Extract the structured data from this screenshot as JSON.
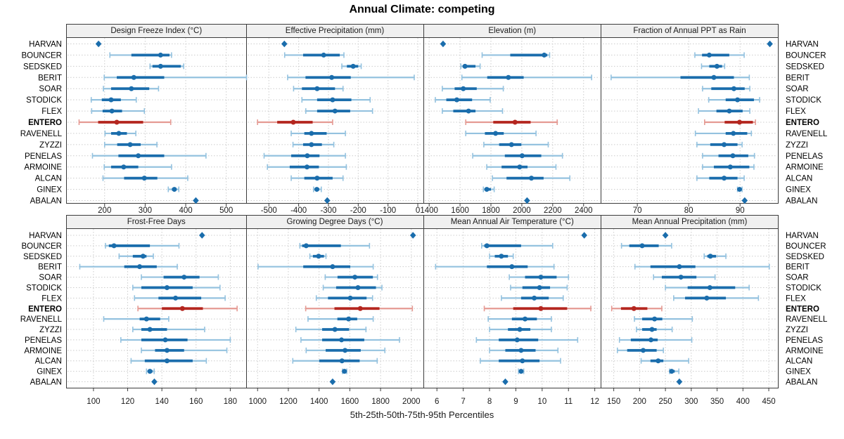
{
  "title": "Annual Climate: competing",
  "footer": "5th-25th-50th-75th-95th Percentiles",
  "highlight_site": "ENTERO",
  "colors": {
    "blue_dark": "#1a6dac",
    "blue_light": "#94c2df",
    "red_dark": "#b4261f",
    "red_light": "#e59a93",
    "grid": "#cccccc",
    "border": "#3c3c3c",
    "header_bg": "#f0f0f0",
    "text": "#1a1a1a"
  },
  "sites": [
    "HARVAN",
    "BOUNCER",
    "SEDSKED",
    "BERIT",
    "SOAR",
    "STODICK",
    "FLEX",
    "ENTERO",
    "RAVENELL",
    "ZYZZI",
    "PENELAS",
    "ARMOINE",
    "ALCAN",
    "GINEX",
    "ABALAN"
  ],
  "chart_data": [
    {
      "type": "percentile-dot",
      "title": "Design Freeze Index (°C)",
      "ticks": [
        200,
        300,
        400,
        500
      ],
      "xlim": [
        105,
        550
      ],
      "values": [
        [
          185
        ],
        [
          213,
          266,
          338,
          360,
          365
        ],
        [
          312,
          318,
          338,
          388,
          395
        ],
        [
          199,
          230,
          272,
          347,
          550
        ],
        [
          197,
          216,
          266,
          310,
          333
        ],
        [
          167,
          193,
          216,
          240,
          278
        ],
        [
          168,
          195,
          218,
          243,
          298
        ],
        [
          137,
          184,
          230,
          295,
          363
        ],
        [
          201,
          216,
          235,
          255,
          277
        ],
        [
          200,
          231,
          263,
          289,
          329
        ],
        [
          170,
          234,
          283,
          347,
          450
        ],
        [
          199,
          216,
          247,
          283,
          365
        ],
        [
          196,
          248,
          298,
          330,
          405
        ],
        [
          357,
          366,
          372,
          377,
          383
        ],
        [
          425
        ]
      ]
    },
    {
      "type": "percentile-dot",
      "title": "Effective Precipitation (mm)",
      "ticks": [
        -500,
        -400,
        -300,
        -200,
        -100,
        0
      ],
      "xlim": [
        -575,
        20
      ],
      "values": [
        [
          -448
        ],
        [
          -447,
          -385,
          -316,
          -262,
          -248
        ],
        [
          -255,
          -238,
          -217,
          -200,
          -190
        ],
        [
          -437,
          -377,
          -289,
          -225,
          -12
        ],
        [
          -417,
          -389,
          -338,
          -278,
          -251
        ],
        [
          -389,
          -338,
          -286,
          -223,
          -160
        ],
        [
          -376,
          -338,
          -278,
          -227,
          -152
        ],
        [
          -538,
          -472,
          -418,
          -353,
          -286
        ],
        [
          -425,
          -381,
          -357,
          -306,
          -243
        ],
        [
          -419,
          -385,
          -357,
          -322,
          -282
        ],
        [
          -516,
          -425,
          -371,
          -330,
          -243
        ],
        [
          -505,
          -430,
          -372,
          -332,
          -240
        ],
        [
          -425,
          -381,
          -338,
          -286,
          -251
        ],
        [
          -350,
          -345,
          -339,
          -331,
          -324
        ],
        [
          -304
        ]
      ]
    },
    {
      "type": "percentile-dot",
      "title": "Elevation (m)",
      "ticks": [
        1400,
        1600,
        1800,
        2000,
        2200,
        2400
      ],
      "xlim": [
        1365,
        2515
      ],
      "values": [
        [
          1490
        ],
        [
          1743,
          1925,
          2145,
          2165,
          2180
        ],
        [
          1605,
          1617,
          1632,
          1700,
          1730
        ],
        [
          1612,
          1776,
          1913,
          2012,
          2452
        ],
        [
          1485,
          1565,
          1621,
          1708,
          1880
        ],
        [
          1440,
          1511,
          1579,
          1678,
          1795
        ],
        [
          1485,
          1556,
          1655,
          1700,
          1875
        ],
        [
          1637,
          1815,
          1956,
          2057,
          2229
        ],
        [
          1637,
          1761,
          1830,
          1883,
          2092
        ],
        [
          1754,
          1853,
          1933,
          1997,
          2171
        ],
        [
          1682,
          1890,
          2002,
          2126,
          2263
        ],
        [
          1773,
          1869,
          1986,
          2037,
          2221
        ],
        [
          1810,
          1901,
          2062,
          2141,
          2311
        ],
        [
          1751,
          1762,
          1773,
          1800,
          1821
        ],
        [
          2034
        ]
      ]
    },
    {
      "type": "percentile-dot",
      "title": "Fraction of Annual PPT as Rain",
      "ticks": [
        70,
        80,
        90
      ],
      "xlim": [
        63,
        97.5
      ],
      "values": [
        [
          95.8
        ],
        [
          81.2,
          82.6,
          84,
          87.9,
          90.8
        ],
        [
          82.5,
          84,
          85.5,
          86.5,
          87
        ],
        [
          64.9,
          78.4,
          84.9,
          88.8,
          91.8
        ],
        [
          82.7,
          84.4,
          88.8,
          90.9,
          91.9
        ],
        [
          83.9,
          87.2,
          89.5,
          92.7,
          93.8
        ],
        [
          81.9,
          85.4,
          87.9,
          90.5,
          91.9
        ],
        [
          83.1,
          87,
          89.9,
          92.5,
          93
        ],
        [
          81.3,
          87.2,
          88.7,
          91.4,
          92.2
        ],
        [
          81.6,
          84.2,
          86.9,
          89.5,
          90.4
        ],
        [
          82.7,
          85.8,
          88.6,
          91.6,
          92.8
        ],
        [
          82.7,
          84.9,
          88.1,
          91.8,
          92.7
        ],
        [
          81.6,
          84,
          86.9,
          89.5,
          90.8
        ],
        [
          89.5,
          89.7,
          89.9,
          90.1,
          90.4
        ],
        [
          90.9
        ]
      ]
    },
    {
      "type": "percentile-dot",
      "title": "Frost-Free Days",
      "ticks": [
        100,
        120,
        140,
        160,
        180
      ],
      "xlim": [
        84,
        189.5
      ],
      "values": [
        [
          163.5
        ],
        [
          107,
          109,
          112,
          133,
          150
        ],
        [
          115,
          123,
          129,
          131,
          135
        ],
        [
          92,
          118,
          127,
          137,
          149
        ],
        [
          128,
          141,
          153,
          162,
          173
        ],
        [
          123,
          128,
          143,
          158,
          174
        ],
        [
          124,
          138,
          148,
          163,
          177
        ],
        [
          126,
          140,
          152,
          164,
          184
        ],
        [
          106,
          127,
          131,
          139,
          144
        ],
        [
          123,
          128,
          133,
          143,
          165
        ],
        [
          116,
          128,
          142,
          155,
          180
        ],
        [
          128,
          136,
          143,
          153,
          178
        ],
        [
          122,
          130,
          143,
          158,
          166
        ],
        [
          131,
          132,
          133,
          134.5,
          135.5
        ],
        [
          135.6
        ]
      ]
    },
    {
      "type": "percentile-dot",
      "title": "Growing Degree Days (°C)",
      "ticks": [
        1000,
        1200,
        1400,
        1600,
        1800,
        2000
      ],
      "xlim": [
        928,
        2081
      ],
      "values": [
        [
          2011
        ],
        [
          1275,
          1290,
          1316,
          1542,
          1728
        ],
        [
          1340,
          1360,
          1397,
          1432,
          1445
        ],
        [
          1003,
          1297,
          1488,
          1603,
          1752
        ],
        [
          1440,
          1520,
          1633,
          1750,
          1780
        ],
        [
          1427,
          1511,
          1653,
          1770,
          1809
        ],
        [
          1382,
          1458,
          1603,
          1709,
          1748
        ],
        [
          1313,
          1500,
          1668,
          1793,
          2007
        ],
        [
          1328,
          1519,
          1592,
          1648,
          1752
        ],
        [
          1249,
          1420,
          1503,
          1595,
          1705
        ],
        [
          1282,
          1420,
          1546,
          1694,
          1923
        ],
        [
          1316,
          1443,
          1569,
          1671,
          1828
        ],
        [
          1229,
          1401,
          1549,
          1664,
          1778
        ],
        [
          1552,
          1558,
          1565,
          1572,
          1580
        ],
        [
          1488
        ]
      ]
    },
    {
      "type": "percentile-dot",
      "title": "Mean Annual Air Temperature (°C)",
      "ticks": [
        6,
        7,
        8,
        9,
        10,
        11,
        12
      ],
      "xlim": [
        5.5,
        12.25
      ],
      "values": [
        [
          11.6
        ],
        [
          7.7,
          7.8,
          7.9,
          9.2,
          10.4
        ],
        [
          8.0,
          8.2,
          8.45,
          8.7,
          8.9
        ],
        [
          5.95,
          7.9,
          8.85,
          9.45,
          10.45
        ],
        [
          8.75,
          9.35,
          9.95,
          10.55,
          11.0
        ],
        [
          8.8,
          9.25,
          9.9,
          10.3,
          10.95
        ],
        [
          8.45,
          9.2,
          9.7,
          10.25,
          10.8
        ],
        [
          7.8,
          8.9,
          9.95,
          10.95,
          11.85
        ],
        [
          7.95,
          8.85,
          9.35,
          9.8,
          10.35
        ],
        [
          8.0,
          8.7,
          9.15,
          9.55,
          10.35
        ],
        [
          7.5,
          8.35,
          9.05,
          9.85,
          11.35
        ],
        [
          8.0,
          8.6,
          9.2,
          9.75,
          10.6
        ],
        [
          7.65,
          8.35,
          9.25,
          9.9,
          10.7
        ],
        [
          9.1,
          9.15,
          9.2,
          9.25,
          9.3
        ],
        [
          8.6
        ]
      ]
    },
    {
      "type": "percentile-dot",
      "title": "Mean Annual Precipitation (mm)",
      "ticks": [
        150,
        200,
        250,
        300,
        350,
        400,
        450
      ],
      "xlim": [
        126,
        469
      ],
      "values": [
        [
          250
        ],
        [
          165,
          180,
          205,
          237,
          262
        ],
        [
          325,
          331,
          337,
          348,
          367
        ],
        [
          191,
          221,
          277,
          308,
          451
        ],
        [
          227,
          243,
          280,
          310,
          346
        ],
        [
          250,
          293,
          336,
          385,
          412
        ],
        [
          266,
          288,
          330,
          367,
          430
        ],
        [
          146,
          164,
          189,
          215,
          243
        ],
        [
          190,
          205,
          229,
          244,
          302
        ],
        [
          194,
          205,
          224,
          233,
          263
        ],
        [
          161,
          183,
          222,
          235,
          301
        ],
        [
          157,
          176,
          207,
          233,
          246
        ],
        [
          203,
          221,
          236,
          246,
          295
        ],
        [
          258,
          260,
          262,
          268,
          276
        ],
        [
          277
        ]
      ]
    }
  ]
}
